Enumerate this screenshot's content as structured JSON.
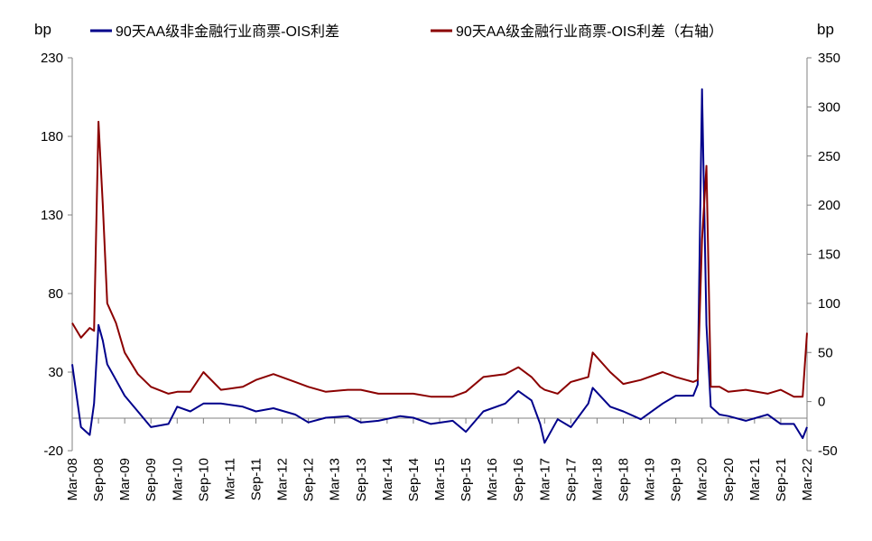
{
  "chart_data": {
    "type": "line",
    "left_unit": "bp",
    "right_unit": "bp",
    "left_axis": {
      "min": -20,
      "max": 230,
      "ticks": [
        230,
        180,
        130,
        80,
        30,
        -20
      ]
    },
    "right_axis": {
      "min": -50,
      "max": 350,
      "ticks": [
        350,
        300,
        250,
        200,
        150,
        100,
        50,
        0,
        -50
      ]
    },
    "x_tick_labels": [
      "Mar-08",
      "Sep-08",
      "Mar-09",
      "Sep-09",
      "Mar-10",
      "Sep-10",
      "Mar-11",
      "Sep-11",
      "Mar-12",
      "Sep-12",
      "Mar-13",
      "Sep-13",
      "Mar-14",
      "Sep-14",
      "Mar-15",
      "Sep-15",
      "Mar-16",
      "Sep-16",
      "Mar-17",
      "Sep-17",
      "Mar-18",
      "Sep-18",
      "Mar-19",
      "Sep-19",
      "Mar-20",
      "Sep-20",
      "Mar-21",
      "Sep-21",
      "Mar-22"
    ],
    "legend_position": "top",
    "grid": false,
    "series": [
      {
        "name": "90天AA级非金融行业商票-OIS利差",
        "axis": "left",
        "color": "#00008B",
        "x": [
          "2008-03",
          "2008-05",
          "2008-07",
          "2008-08",
          "2008-09",
          "2008-10",
          "2008-11",
          "2009-01",
          "2009-03",
          "2009-06",
          "2009-09",
          "2010-01",
          "2010-03",
          "2010-06",
          "2010-09",
          "2011-01",
          "2011-06",
          "2011-09",
          "2012-01",
          "2012-06",
          "2012-09",
          "2013-01",
          "2013-06",
          "2013-09",
          "2014-01",
          "2014-06",
          "2014-09",
          "2015-01",
          "2015-06",
          "2015-09",
          "2016-01",
          "2016-06",
          "2016-09",
          "2016-12",
          "2017-02",
          "2017-03",
          "2017-06",
          "2017-09",
          "2018-01",
          "2018-02",
          "2018-06",
          "2018-09",
          "2019-01",
          "2019-06",
          "2019-09",
          "2020-01",
          "2020-02",
          "2020-03",
          "2020-04",
          "2020-05",
          "2020-07",
          "2020-09",
          "2021-01",
          "2021-06",
          "2021-09",
          "2021-12",
          "2022-02",
          "2022-03"
        ],
        "values": [
          35,
          -5,
          -10,
          10,
          60,
          50,
          35,
          25,
          15,
          5,
          -5,
          -3,
          8,
          5,
          10,
          10,
          8,
          5,
          7,
          3,
          -2,
          1,
          2,
          -2,
          -1,
          2,
          1,
          -3,
          -1,
          -8,
          5,
          10,
          18,
          12,
          -3,
          -15,
          0,
          -5,
          10,
          20,
          8,
          5,
          0,
          10,
          15,
          15,
          22,
          210,
          60,
          8,
          3,
          2,
          -1,
          3,
          -3,
          -3,
          -12,
          -5
        ]
      },
      {
        "name": "90天AA级金融行业商票-OIS利差（右轴）",
        "axis": "right",
        "color": "#8B0000",
        "x": [
          "2008-03",
          "2008-05",
          "2008-07",
          "2008-08",
          "2008-09",
          "2008-10",
          "2008-11",
          "2009-01",
          "2009-03",
          "2009-06",
          "2009-09",
          "2010-01",
          "2010-03",
          "2010-06",
          "2010-09",
          "2011-01",
          "2011-06",
          "2011-09",
          "2012-01",
          "2012-06",
          "2012-09",
          "2013-01",
          "2013-06",
          "2013-09",
          "2014-01",
          "2014-06",
          "2014-09",
          "2015-01",
          "2015-06",
          "2015-09",
          "2016-01",
          "2016-06",
          "2016-09",
          "2016-12",
          "2017-02",
          "2017-03",
          "2017-06",
          "2017-09",
          "2018-01",
          "2018-02",
          "2018-06",
          "2018-09",
          "2019-01",
          "2019-06",
          "2019-09",
          "2020-01",
          "2020-02",
          "2020-03",
          "2020-04",
          "2020-05",
          "2020-07",
          "2020-09",
          "2021-01",
          "2021-06",
          "2021-09",
          "2021-12",
          "2022-02",
          "2022-03"
        ],
        "values": [
          80,
          65,
          75,
          72,
          285,
          200,
          100,
          80,
          50,
          28,
          15,
          8,
          10,
          10,
          30,
          12,
          15,
          22,
          28,
          20,
          15,
          10,
          12,
          12,
          8,
          8,
          8,
          5,
          5,
          10,
          25,
          28,
          35,
          25,
          15,
          12,
          8,
          20,
          25,
          50,
          30,
          18,
          22,
          30,
          25,
          20,
          22,
          165,
          240,
          15,
          15,
          10,
          12,
          8,
          12,
          5,
          5,
          70
        ]
      }
    ]
  }
}
